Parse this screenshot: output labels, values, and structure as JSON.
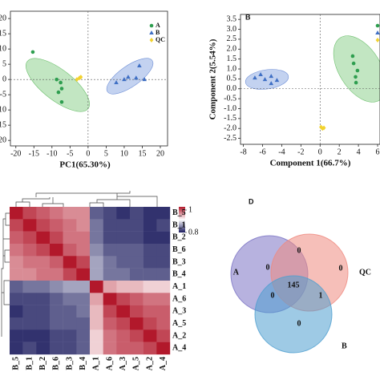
{
  "chart_data": [
    {
      "type": "scatter",
      "x_label": "PC1(65.30%)",
      "xlim": [
        -21.5,
        22
      ],
      "xticks": [
        -20,
        -15,
        -10,
        -5,
        0,
        5,
        10,
        15,
        20
      ],
      "ylim": [
        -21.8,
        22.4
      ],
      "yticks": [
        -20,
        -15,
        -10,
        -5,
        0,
        5,
        10,
        15,
        20
      ],
      "legend": "upper right",
      "series": [
        {
          "name": "A",
          "color": "#2e9e4f",
          "marker": "circle",
          "x": [
            -15.3,
            -8.7,
            -7.6,
            -7.3,
            -8.2,
            -7.3
          ],
          "values": [
            9,
            0,
            -1,
            -3,
            -4.2,
            -7.4
          ]
        },
        {
          "name": "B",
          "color": "#3f6fc4",
          "marker": "triangle",
          "x": [
            7.8,
            10,
            11.1,
            13.3,
            14.2,
            15.6
          ],
          "values": [
            -1,
            0,
            0.8,
            0.5,
            4.5,
            0
          ]
        },
        {
          "name": "QC",
          "color": "#f2d22e",
          "marker": "diamond",
          "x": [
            -3.1,
            -2.4,
            -2
          ],
          "values": [
            0,
            0.5,
            0.8
          ]
        }
      ]
    },
    {
      "type": "scatter",
      "panel_label": "B",
      "x_label": "Component 1(66.7%)",
      "y_label": "Component 2(5.54%)",
      "xlim": [
        -8.3,
        6.25
      ],
      "xticks": [
        -8,
        -6,
        -4,
        -2,
        0,
        2,
        4,
        6
      ],
      "ylim": [
        -2.8,
        3.75
      ],
      "yticks": [
        {
          "value": 3.5,
          "label": "3.5"
        },
        {
          "value": 3,
          "label": "3.0"
        },
        {
          "value": 2.5,
          "label": "2.5"
        },
        {
          "value": 2,
          "label": "2.0"
        },
        {
          "value": 1.5,
          "label": "1.5"
        },
        {
          "value": 1,
          "label": "1.0"
        },
        {
          "value": 0.5,
          "label": "0.5"
        },
        {
          "value": 0,
          "label": "0.0"
        },
        {
          "value": -0.5,
          "label": "-0.5"
        },
        {
          "value": -1,
          "label": "-1.0"
        },
        {
          "value": -1.5,
          "label": "-1.5"
        },
        {
          "value": -2,
          "label": "-2.0"
        },
        {
          "value": -2.5,
          "label": "-2.5"
        }
      ],
      "legend": "upper right",
      "series": [
        {
          "color": "#2e9e4f",
          "marker": "circle",
          "x": [
            3.4,
            3.5,
            3.9,
            3.7,
            3.75
          ],
          "values": [
            1.65,
            1.28,
            0.92,
            0.6,
            0.31
          ]
        },
        {
          "color": "#3f6fc4",
          "marker": "triangle",
          "x": [
            -6.8,
            -6.2,
            -5.75,
            -5.1,
            -4.5,
            -5.1
          ],
          "values": [
            0.55,
            0.72,
            0.47,
            0.63,
            0.43,
            0.27
          ]
        },
        {
          "color": "#f2d22e",
          "marker": "diamond",
          "x": [
            0.1,
            0.4,
            0.25
          ],
          "values": [
            -1.93,
            -1.97,
            -2.0
          ]
        }
      ]
    },
    {
      "type": "heatmap",
      "rows": [
        "B_5",
        "B_1",
        "B_2",
        "B_6",
        "B_3",
        "B_4",
        "A_1",
        "A_6",
        "A_3",
        "A_5",
        "A_2",
        "A_4"
      ],
      "columns": [
        "B_5",
        "B_1",
        "B_2",
        "B_6",
        "B_3",
        "B_4",
        "A_1",
        "A_6",
        "A_3",
        "A_5",
        "A_2",
        "A_4"
      ],
      "zlim": [
        0.8,
        1
      ],
      "zticks": [
        1,
        0.8
      ],
      "values": [
        [
          1,
          0.98,
          0.97,
          0.96,
          0.95,
          0.95,
          0.83,
          0.82,
          0.81,
          0.82,
          0.81,
          0.81
        ],
        [
          0.98,
          1,
          0.98,
          0.97,
          0.96,
          0.95,
          0.84,
          0.82,
          0.82,
          0.82,
          0.81,
          0.82
        ],
        [
          0.97,
          0.98,
          1,
          0.98,
          0.96,
          0.96,
          0.84,
          0.82,
          0.82,
          0.82,
          0.81,
          0.81
        ],
        [
          0.96,
          0.97,
          0.98,
          1,
          0.97,
          0.96,
          0.85,
          0.83,
          0.83,
          0.83,
          0.82,
          0.82
        ],
        [
          0.95,
          0.96,
          0.96,
          0.97,
          1,
          0.98,
          0.86,
          0.84,
          0.83,
          0.83,
          0.82,
          0.82
        ],
        [
          0.95,
          0.95,
          0.96,
          0.96,
          0.98,
          1,
          0.86,
          0.84,
          0.84,
          0.83,
          0.83,
          0.83
        ],
        [
          0.83,
          0.84,
          0.84,
          0.85,
          0.86,
          0.86,
          1,
          0.94,
          0.93,
          0.93,
          0.92,
          0.92
        ],
        [
          0.82,
          0.82,
          0.82,
          0.83,
          0.84,
          0.84,
          0.94,
          1,
          0.98,
          0.97,
          0.96,
          0.96
        ],
        [
          0.81,
          0.82,
          0.82,
          0.83,
          0.83,
          0.84,
          0.93,
          0.98,
          1,
          0.98,
          0.97,
          0.97
        ],
        [
          0.82,
          0.82,
          0.82,
          0.83,
          0.83,
          0.83,
          0.93,
          0.97,
          0.98,
          1,
          0.98,
          0.97
        ],
        [
          0.81,
          0.81,
          0.81,
          0.82,
          0.82,
          0.83,
          0.92,
          0.96,
          0.97,
          0.98,
          1,
          0.98
        ],
        [
          0.81,
          0.82,
          0.81,
          0.82,
          0.82,
          0.83,
          0.92,
          0.96,
          0.97,
          0.97,
          0.98,
          1
        ]
      ]
    },
    {
      "type": "venn",
      "panel_label": "D",
      "sets": [
        {
          "name": "A",
          "color": "#7b73c4"
        },
        {
          "name": "QC",
          "color": "#ef8a80"
        },
        {
          "name": "B",
          "color": "#4f9fcf"
        }
      ],
      "regions": [
        {
          "sets": [
            "A"
          ],
          "value": 0
        },
        {
          "sets": [
            "A",
            "QC"
          ],
          "value": 0
        },
        {
          "sets": [
            "QC"
          ],
          "value": 0
        },
        {
          "sets": [
            "A",
            "QC",
            "B"
          ],
          "value": 145
        },
        {
          "sets": [
            "A",
            "B"
          ],
          "value": 0
        },
        {
          "sets": [
            "QC",
            "B"
          ],
          "value": 1
        },
        {
          "sets": [
            "B"
          ],
          "value": 0
        }
      ]
    }
  ]
}
